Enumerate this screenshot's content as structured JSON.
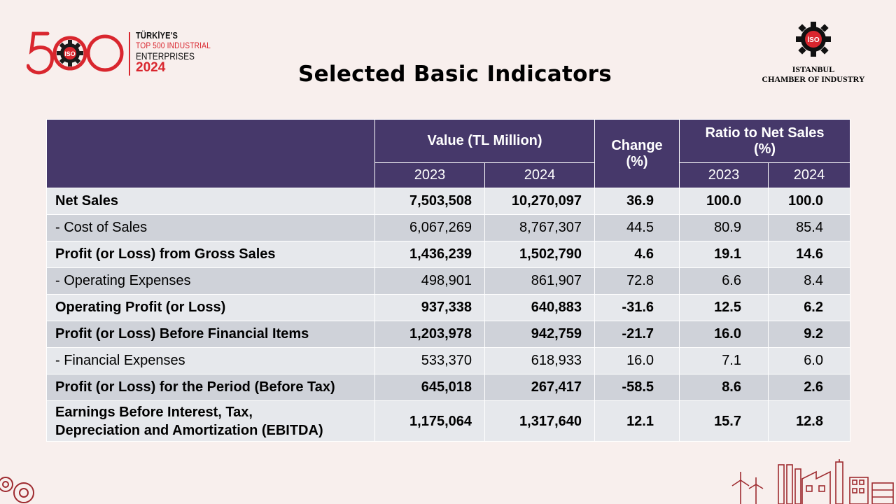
{
  "header": {
    "logo": {
      "number": "500",
      "line1": "TÜRKİYE'S",
      "line2": "TOP 500 INDUSTRIAL",
      "line3": "ENTERPRISES",
      "line4": "2024"
    },
    "title": "Selected Basic Indicators",
    "org": {
      "line1": "ISTANBUL",
      "line2": "CHAMBER OF INDUSTRY",
      "emblem_text": "İSO"
    }
  },
  "colors": {
    "header_bg": "#46386a",
    "row_light": "#e6e8ec",
    "row_dark": "#cfd2d9",
    "brand_red": "#d9262e",
    "background": "#f8efed"
  },
  "table": {
    "headers": {
      "value": "Value (TL Million)",
      "change_line1": "Change",
      "change_line2": "(%)",
      "ratio_line1": "Ratio to Net Sales",
      "ratio_line2": "(%)",
      "years": [
        "2023",
        "2024",
        "2023",
        "2024"
      ]
    },
    "rows": [
      {
        "label": "Net Sales",
        "v2023": "7,503,508",
        "v2024": "10,270,097",
        "change": "36.9",
        "r2023": "100.0",
        "r2024": "100.0"
      },
      {
        "label": "- Cost of Sales",
        "v2023": "6,067,269",
        "v2024": "8,767,307",
        "change": "44.5",
        "r2023": "80.9",
        "r2024": "85.4"
      },
      {
        "label": "Profit (or Loss) from Gross Sales",
        "v2023": "1,436,239",
        "v2024": "1,502,790",
        "change": "4.6",
        "r2023": "19.1",
        "r2024": "14.6"
      },
      {
        "label": "- Operating Expenses",
        "v2023": "498,901",
        "v2024": "861,907",
        "change": "72.8",
        "r2023": "6.6",
        "r2024": "8.4"
      },
      {
        "label": "Operating Profit (or Loss)",
        "v2023": "937,338",
        "v2024": "640,883",
        "change": "-31.6",
        "r2023": "12.5",
        "r2024": "6.2"
      },
      {
        "label": "Profit (or Loss) Before Financial Items",
        "v2023": "1,203,978",
        "v2024": "942,759",
        "change": "-21.7",
        "r2023": "16.0",
        "r2024": "9.2"
      },
      {
        "label": "- Financial Expenses",
        "v2023": "533,370",
        "v2024": "618,933",
        "change": "16.0",
        "r2023": "7.1",
        "r2024": "6.0"
      },
      {
        "label": "Profit (or Loss) for the Period (Before Tax)",
        "v2023": "645,018",
        "v2024": "267,417",
        "change": "-58.5",
        "r2023": "8.6",
        "r2024": "2.6"
      },
      {
        "label_line1": "Earnings Before Interest, Tax,",
        "label_line2": "Depreciation and Amortization (EBITDA)",
        "v2023": "1,175,064",
        "v2024": "1,317,640",
        "change": "12.1",
        "r2023": "15.7",
        "r2024": "12.8"
      }
    ]
  }
}
